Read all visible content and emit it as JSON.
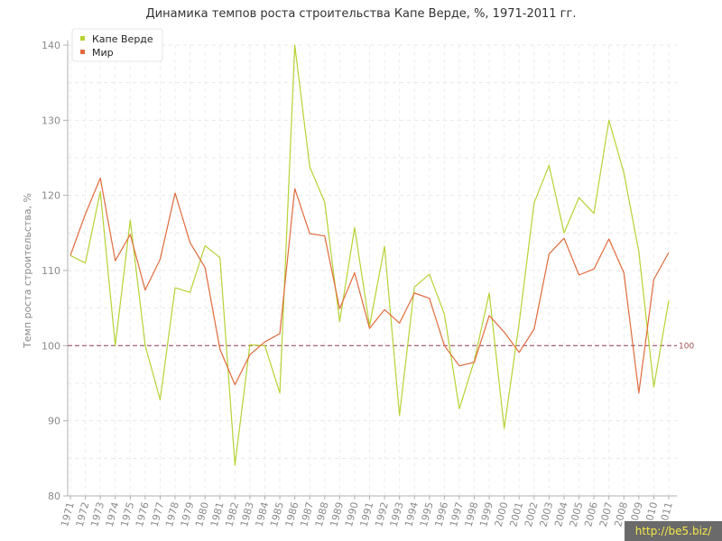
{
  "chart_data": {
    "type": "line",
    "title": "Динамика темпов роста строительства Капе Верде, %, 1971-2011 гг.",
    "ylabel": "Темп роста строительства, %",
    "xlabel": "",
    "ylim": [
      80,
      140
    ],
    "yticks": [
      80,
      90,
      100,
      110,
      120,
      130,
      140
    ],
    "reference_line": {
      "value": 100,
      "label": "100",
      "color": "#a0506a"
    },
    "grid": true,
    "legend_position": "top-left",
    "x": [
      "1971",
      "1972",
      "1973",
      "1974",
      "1975",
      "1976",
      "1977",
      "1978",
      "1979",
      "1980",
      "1981",
      "1982",
      "1983",
      "1984",
      "1985",
      "1986",
      "1987",
      "1988",
      "1989",
      "1990",
      "1991",
      "1992",
      "1993",
      "1994",
      "1995",
      "1996",
      "1997",
      "1998",
      "1999",
      "2000",
      "2001",
      "2002",
      "2003",
      "2004",
      "2005",
      "2006",
      "2007",
      "2008",
      "2009",
      "2010",
      "2011"
    ],
    "series": [
      {
        "name": "Капе Верде",
        "color": "#b5d334",
        "values": [
          112,
          111,
          120.5,
          100,
          116.7,
          100,
          92.8,
          107.7,
          107.1,
          113.3,
          111.7,
          84.1,
          100.1,
          100,
          93.7,
          140,
          123.8,
          119.1,
          103.2,
          115.7,
          102.6,
          113.2,
          90.7,
          107.8,
          109.5,
          104.2,
          91.6,
          98,
          107,
          89,
          103,
          119,
          124,
          115,
          119.7,
          117.6,
          130,
          123,
          112.5,
          94.5,
          106
        ]
      },
      {
        "name": "Мир",
        "color": "#e06a3c",
        "values": [
          112,
          117.5,
          122.3,
          111.3,
          114.8,
          107.4,
          111.5,
          120.3,
          113.7,
          110.4,
          99.5,
          94.8,
          98.8,
          100.5,
          101.6,
          120.9,
          114.9,
          114.6,
          104.9,
          109.7,
          102.3,
          104.8,
          103,
          107,
          106.3,
          100,
          97.3,
          97.8,
          104,
          101.8,
          99.1,
          102.2,
          112.2,
          114.3,
          109.4,
          110.2,
          114.2,
          109.7,
          93.7,
          108.8,
          112.4
        ]
      }
    ]
  },
  "watermark": "http://be5.biz/"
}
